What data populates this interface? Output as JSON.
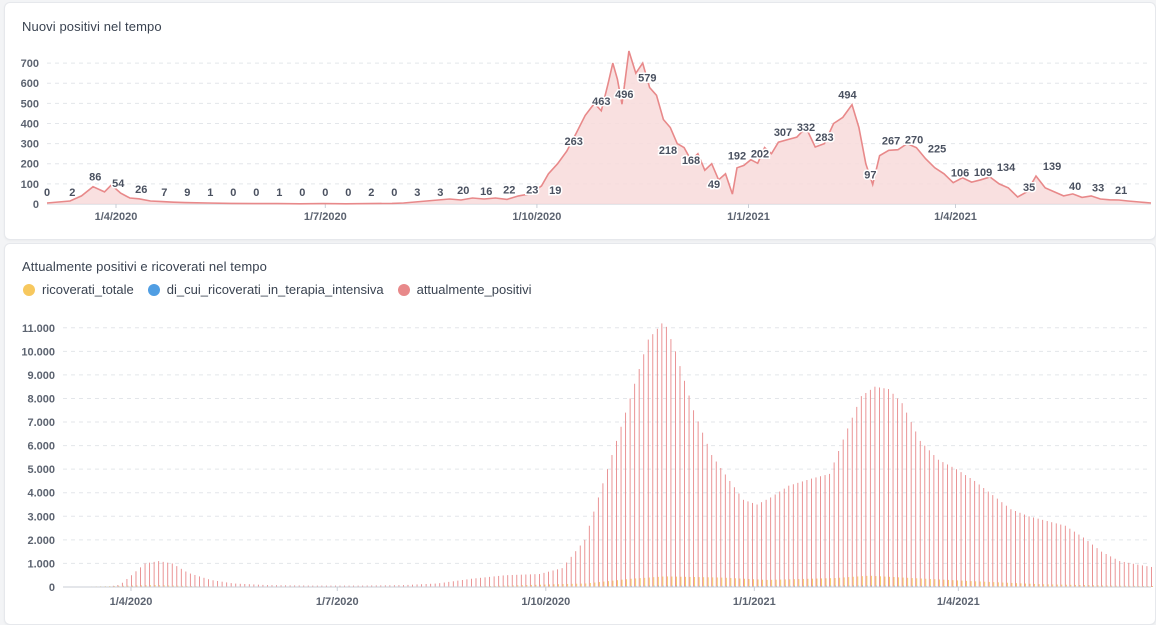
{
  "colors": {
    "positivi": "#e8898a",
    "positivi_fill": "#f8dada",
    "ricoverati": "#f7c85e",
    "terapia": "#509ee3",
    "axis_text": "#5c6370",
    "grid": "#e3e6ea"
  },
  "chart_data": [
    {
      "type": "area",
      "title": "Nuovi positivi nel tempo",
      "x_ticks": [
        "1/4/2020",
        "1/7/2020",
        "1/10/2020",
        "1/1/2021",
        "1/4/2021"
      ],
      "y_ticks": [
        "0",
        "100",
        "200",
        "300",
        "400",
        "500",
        "600",
        "700"
      ],
      "ylim": [
        0,
        780
      ],
      "xlim_days": [
        0,
        480
      ],
      "x_tick_days": [
        30,
        121,
        213,
        305,
        395
      ],
      "series": [
        {
          "name": "nuovi_positivi",
          "points": [
            [
              0,
              5
            ],
            [
              5,
              10
            ],
            [
              10,
              15
            ],
            [
              15,
              40
            ],
            [
              20,
              86
            ],
            [
              25,
              60
            ],
            [
              28,
              95
            ],
            [
              32,
              54
            ],
            [
              36,
              30
            ],
            [
              40,
              26
            ],
            [
              45,
              15
            ],
            [
              50,
              12
            ],
            [
              55,
              9
            ],
            [
              60,
              7
            ],
            [
              70,
              5
            ],
            [
              80,
              3
            ],
            [
              90,
              2
            ],
            [
              100,
              2
            ],
            [
              110,
              1
            ],
            [
              120,
              2
            ],
            [
              130,
              1
            ],
            [
              140,
              2
            ],
            [
              150,
              3
            ],
            [
              155,
              5
            ],
            [
              160,
              10
            ],
            [
              165,
              15
            ],
            [
              170,
              20
            ],
            [
              175,
              25
            ],
            [
              180,
              20
            ],
            [
              185,
              30
            ],
            [
              190,
              25
            ],
            [
              195,
              30
            ],
            [
              200,
              23
            ],
            [
              205,
              40
            ],
            [
              210,
              50
            ],
            [
              215,
              90
            ],
            [
              218,
              150
            ],
            [
              222,
              200
            ],
            [
              226,
              263
            ],
            [
              230,
              350
            ],
            [
              234,
              440
            ],
            [
              238,
              500
            ],
            [
              241,
              463
            ],
            [
              244,
              600
            ],
            [
              246,
              700
            ],
            [
              248,
              620
            ],
            [
              250,
              496
            ],
            [
              253,
              760
            ],
            [
              256,
              650
            ],
            [
              259,
              700
            ],
            [
              262,
              579
            ],
            [
              265,
              540
            ],
            [
              268,
              420
            ],
            [
              271,
              380
            ],
            [
              274,
              300
            ],
            [
              277,
              280
            ],
            [
              280,
              218
            ],
            [
              283,
              250
            ],
            [
              286,
              168
            ],
            [
              289,
              200
            ],
            [
              292,
              120
            ],
            [
              295,
              150
            ],
            [
              298,
              49
            ],
            [
              300,
              180
            ],
            [
              303,
              192
            ],
            [
              306,
              220
            ],
            [
              309,
              202
            ],
            [
              312,
              280
            ],
            [
              315,
              250
            ],
            [
              318,
              307
            ],
            [
              322,
              320
            ],
            [
              326,
              332
            ],
            [
              330,
              380
            ],
            [
              334,
              283
            ],
            [
              338,
              300
            ],
            [
              342,
              400
            ],
            [
              346,
              430
            ],
            [
              350,
              494
            ],
            [
              353,
              380
            ],
            [
              356,
              200
            ],
            [
              359,
              97
            ],
            [
              362,
              240
            ],
            [
              366,
              267
            ],
            [
              370,
              270
            ],
            [
              374,
              300
            ],
            [
              378,
              280
            ],
            [
              382,
              225
            ],
            [
              386,
              180
            ],
            [
              390,
              150
            ],
            [
              394,
              106
            ],
            [
              398,
              130
            ],
            [
              402,
              109
            ],
            [
              406,
              120
            ],
            [
              410,
              134
            ],
            [
              414,
              100
            ],
            [
              418,
              80
            ],
            [
              422,
              35
            ],
            [
              426,
              60
            ],
            [
              430,
              139
            ],
            [
              434,
              80
            ],
            [
              438,
              60
            ],
            [
              442,
              40
            ],
            [
              446,
              50
            ],
            [
              450,
              33
            ],
            [
              454,
              40
            ],
            [
              458,
              25
            ],
            [
              462,
              21
            ],
            [
              466,
              20
            ],
            [
              470,
              15
            ],
            [
              475,
              10
            ],
            [
              480,
              5
            ]
          ],
          "data_labels": [
            [
              0,
              "0"
            ],
            [
              11,
              "2"
            ],
            [
              21,
              "86"
            ],
            [
              31,
              "54"
            ],
            [
              41,
              "26"
            ],
            [
              51,
              "7"
            ],
            [
              61,
              "9"
            ],
            [
              71,
              "1"
            ],
            [
              81,
              "0"
            ],
            [
              91,
              "0"
            ],
            [
              101,
              "1"
            ],
            [
              111,
              "0"
            ],
            [
              121,
              "0"
            ],
            [
              131,
              "0"
            ],
            [
              141,
              "2"
            ],
            [
              151,
              "0"
            ],
            [
              161,
              "3"
            ],
            [
              171,
              "3"
            ],
            [
              181,
              "20"
            ],
            [
              191,
              "16"
            ],
            [
              201,
              "22"
            ],
            [
              211,
              "23"
            ],
            [
              221,
              "19"
            ],
            [
              229,
              "263"
            ],
            [
              241,
              "463"
            ],
            [
              251,
              "496"
            ],
            [
              261,
              "579"
            ],
            [
              270,
              "218"
            ],
            [
              280,
              "168"
            ],
            [
              290,
              "49"
            ],
            [
              300,
              "192"
            ],
            [
              310,
              "202"
            ],
            [
              320,
              "307"
            ],
            [
              330,
              "332"
            ],
            [
              338,
              "283"
            ],
            [
              348,
              "494"
            ],
            [
              358,
              "97"
            ],
            [
              367,
              "267"
            ],
            [
              377,
              "270"
            ],
            [
              387,
              "225"
            ],
            [
              397,
              "106"
            ],
            [
              407,
              "109"
            ],
            [
              417,
              "134"
            ],
            [
              427,
              "35"
            ],
            [
              437,
              "139"
            ],
            [
              447,
              "40"
            ],
            [
              457,
              "33"
            ],
            [
              467,
              "21"
            ]
          ]
        }
      ]
    },
    {
      "type": "bar",
      "title": "Attualmente positivi e ricoverati nel tempo",
      "x_ticks": [
        "1/4/2020",
        "1/7/2020",
        "1/10/2020",
        "1/1/2021",
        "1/4/2021"
      ],
      "y_ticks": [
        "0",
        "1.000",
        "2.000",
        "3.000",
        "4.000",
        "5.000",
        "6.000",
        "7.000",
        "8.000",
        "9.000",
        "10.000",
        "11.000"
      ],
      "ylim": [
        0,
        11500
      ],
      "xlim_days": [
        0,
        480
      ],
      "x_tick_days": [
        30,
        121,
        213,
        305,
        395
      ],
      "series": [
        {
          "name": "attualmente_positivi",
          "curve": [
            [
              0,
              0
            ],
            [
              10,
              10
            ],
            [
              20,
              20
            ],
            [
              25,
              100
            ],
            [
              30,
              500
            ],
            [
              36,
              1000
            ],
            [
              42,
              1100
            ],
            [
              48,
              1000
            ],
            [
              55,
              600
            ],
            [
              65,
              300
            ],
            [
              75,
              150
            ],
            [
              90,
              80
            ],
            [
              110,
              60
            ],
            [
              130,
              60
            ],
            [
              150,
              80
            ],
            [
              165,
              150
            ],
            [
              180,
              350
            ],
            [
              195,
              500
            ],
            [
              210,
              550
            ],
            [
              220,
              800
            ],
            [
              230,
              2000
            ],
            [
              240,
              5000
            ],
            [
              250,
              8000
            ],
            [
              258,
              10500
            ],
            [
              265,
              11300
            ],
            [
              270,
              10000
            ],
            [
              278,
              7500
            ],
            [
              286,
              5600
            ],
            [
              294,
              4500
            ],
            [
              300,
              3700
            ],
            [
              306,
              3500
            ],
            [
              312,
              3800
            ],
            [
              320,
              4300
            ],
            [
              330,
              4600
            ],
            [
              338,
              4800
            ],
            [
              345,
              6500
            ],
            [
              352,
              8100
            ],
            [
              358,
              8500
            ],
            [
              364,
              8400
            ],
            [
              370,
              7800
            ],
            [
              378,
              6200
            ],
            [
              386,
              5400
            ],
            [
              394,
              5000
            ],
            [
              402,
              4500
            ],
            [
              410,
              3900
            ],
            [
              418,
              3300
            ],
            [
              426,
              3000
            ],
            [
              434,
              2800
            ],
            [
              442,
              2600
            ],
            [
              450,
              2100
            ],
            [
              458,
              1500
            ],
            [
              466,
              1100
            ],
            [
              474,
              950
            ],
            [
              480,
              850
            ]
          ]
        },
        {
          "name": "ricoverati_totale",
          "curve": [
            [
              0,
              0
            ],
            [
              30,
              60
            ],
            [
              40,
              80
            ],
            [
              60,
              30
            ],
            [
              100,
              10
            ],
            [
              180,
              20
            ],
            [
              230,
              150
            ],
            [
              250,
              350
            ],
            [
              265,
              450
            ],
            [
              290,
              400
            ],
            [
              310,
              300
            ],
            [
              340,
              380
            ],
            [
              355,
              480
            ],
            [
              370,
              400
            ],
            [
              400,
              250
            ],
            [
              430,
              120
            ],
            [
              460,
              60
            ],
            [
              480,
              40
            ]
          ]
        },
        {
          "name": "di_cui_ricoverati_in_terapia_intensiva",
          "curve": [
            [
              0,
              0
            ],
            [
              30,
              15
            ],
            [
              60,
              5
            ],
            [
              230,
              20
            ],
            [
              260,
              60
            ],
            [
              300,
              45
            ],
            [
              355,
              65
            ],
            [
              400,
              35
            ],
            [
              450,
              10
            ],
            [
              480,
              8
            ]
          ]
        }
      ],
      "legend": [
        {
          "label": "ricoverati_totale",
          "color": "#f7c85e"
        },
        {
          "label": "di_cui_ricoverati_in_terapia_intensiva",
          "color": "#509ee3"
        },
        {
          "label": "attualmente_positivi",
          "color": "#e8898a"
        }
      ]
    }
  ]
}
